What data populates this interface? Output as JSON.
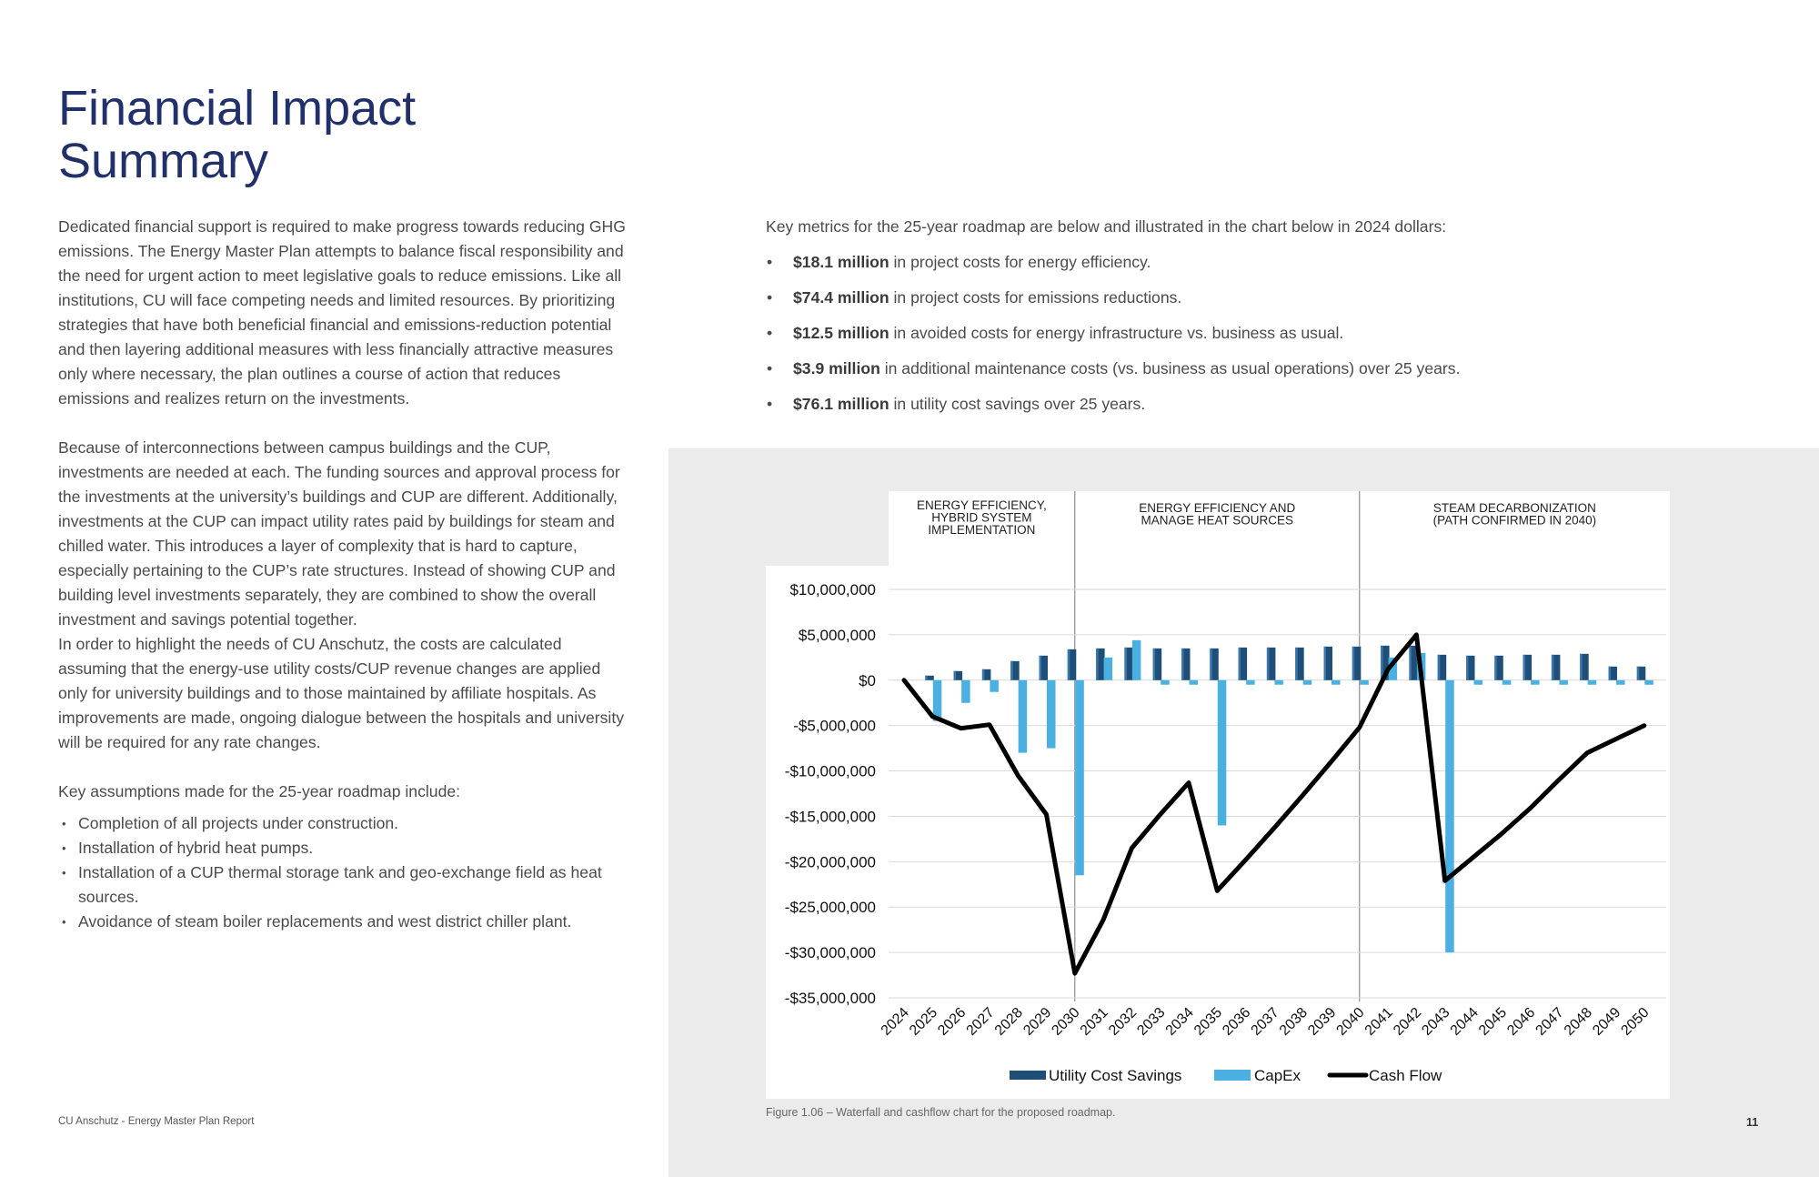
{
  "title_line1": "Financial Impact",
  "title_line2": "Summary",
  "left": {
    "para1": "Dedicated financial support is required to make progress towards reducing GHG emissions. The Energy Master Plan attempts to balance fiscal responsibility and the need for urgent action to meet legislative goals to reduce emissions. Like all institutions, CU will face competing needs and limited resources. By prioritizing strategies that have both beneficial financial and emissions-reduction potential and then layering additional measures with less financially attractive measures only where necessary, the plan outlines a course of action that reduces emissions and realizes return on the investments.",
    "para2": "Because of interconnections between campus buildings and the CUP, investments are needed at each. The funding sources and approval process for the investments at the university’s buildings and CUP are different. Additionally, investments at the CUP can impact utility rates paid by buildings for steam and chilled water. This introduces a layer of complexity that is hard to capture, especially pertaining to the CUP’s rate structures. Instead of showing CUP and building level investments separately, they are combined to show the overall investment and savings potential together.",
    "para3": "In order to highlight the needs of CU Anschutz, the costs are calculated assuming that the energy-use utility costs/CUP revenue changes are applied only for university buildings and to those maintained by affiliate hospitals. As improvements are made, ongoing dialogue between the hospitals and university will be required for any rate changes.",
    "assumptions_intro": "Key assumptions made for the 25-year roadmap include:",
    "assumptions": [
      "Completion of all projects under construction.",
      "Installation of hybrid heat pumps.",
      "Installation of a CUP thermal storage tank and geo-exchange field as heat sources.",
      "Avoidance of steam boiler replacements and west district chiller plant."
    ]
  },
  "right": {
    "intro": "Key metrics for the 25-year roadmap are below and illustrated in the chart below in 2024 dollars:",
    "metrics": [
      {
        "bold": "$18.1 million",
        "text": " in project costs for energy efficiency."
      },
      {
        "bold": "$74.4 million",
        "text": " in project costs for emissions reductions."
      },
      {
        "bold": "$12.5 million",
        "text": " in avoided costs for energy infrastructure vs. business as usual."
      },
      {
        "bold": "$3.9 million",
        "text": " in additional maintenance costs (vs. business as usual operations) over 25 years."
      },
      {
        "bold": "$76.1 million",
        "text": " in utility cost savings over 25 years."
      }
    ]
  },
  "chart_data": {
    "type": "bar",
    "phases": [
      {
        "label_lines": [
          "ENERGY EFFICIENCY,",
          "HYBRID SYSTEM",
          "IMPLEMENTATION"
        ],
        "start": "2024",
        "end": "2030"
      },
      {
        "label_lines": [
          "ENERGY EFFICIENCY AND",
          "MANAGE HEAT SOURCES"
        ],
        "start": "2030",
        "end": "2040"
      },
      {
        "label_lines": [
          "STEAM DECARBONIZATION",
          "(PATH CONFIRMED IN 2040)"
        ],
        "start": "2040",
        "end": "2050"
      }
    ],
    "categories": [
      "2024",
      "2025",
      "2026",
      "2027",
      "2028",
      "2029",
      "2030",
      "2031",
      "2032",
      "2033",
      "2034",
      "2035",
      "2036",
      "2037",
      "2038",
      "2039",
      "2040",
      "2041",
      "2042",
      "2043",
      "2044",
      "2045",
      "2046",
      "2047",
      "2048",
      "2049",
      "2050"
    ],
    "ylim": [
      -35000000,
      10000000
    ],
    "y_ticks": [
      10000000,
      5000000,
      0,
      -5000000,
      -10000000,
      -15000000,
      -20000000,
      -25000000,
      -30000000,
      -35000000
    ],
    "y_tick_labels": [
      "$10,000,000",
      "$5,000,000",
      "$0",
      "-$5,000,000",
      "-$10,000,000",
      "-$15,000,000",
      "-$20,000,000",
      "-$25,000,000",
      "-$30,000,000",
      "-$35,000,000"
    ],
    "grid": true,
    "legend_position": "bottom",
    "series": [
      {
        "name": "Utility Cost Savings",
        "kind": "bar",
        "color": "#1f4e79",
        "values": [
          0,
          500000,
          1000000,
          1200000,
          2100000,
          2700000,
          3400000,
          3500000,
          3600000,
          3500000,
          3500000,
          3500000,
          3600000,
          3600000,
          3600000,
          3700000,
          3700000,
          3800000,
          3800000,
          2800000,
          2700000,
          2700000,
          2800000,
          2800000,
          2900000,
          1500000,
          1500000
        ]
      },
      {
        "name": "CapEx",
        "kind": "bar",
        "color": "#4ab0e2",
        "values": [
          0,
          -4500000,
          -2500000,
          -1300000,
          -8000000,
          -7500000,
          -21500000,
          2500000,
          4400000,
          -500000,
          -500000,
          -16000000,
          -500000,
          -500000,
          -500000,
          -500000,
          -500000,
          2500000,
          3000000,
          -30000000,
          -500000,
          -500000,
          -500000,
          -500000,
          -500000,
          -500000,
          -500000
        ]
      },
      {
        "name": "Cash Flow",
        "kind": "line",
        "color": "#000000",
        "values": [
          0,
          -4000000,
          -5300000,
          -4900000,
          -10500000,
          -14800000,
          -32300000,
          -26400000,
          -18500000,
          -14800000,
          -11300000,
          -23200000,
          -19800000,
          -16300000,
          -12700000,
          -9000000,
          -5200000,
          1200000,
          5000000,
          -22100000,
          -19500000,
          -16900000,
          -14100000,
          -11000000,
          -8000000,
          -6500000,
          -5000000
        ]
      }
    ]
  },
  "caption": "Figure 1.06 – Waterfall and cashflow chart for the proposed roadmap.",
  "footer": "CU Anschutz - Energy Master Plan Report",
  "page_number": "11"
}
